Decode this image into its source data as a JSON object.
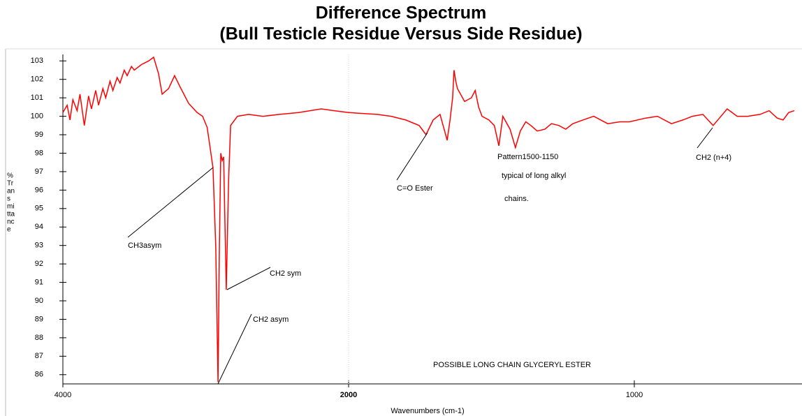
{
  "chart_data": {
    "type": "line",
    "title": [
      "Difference Spectrum",
      "(Bull Testicle Residue Versus Side Residue)"
    ],
    "xlabel": "Wavenumbers (cm-1)",
    "ylabel": [
      "%",
      "Tr",
      "an",
      "s",
      "mi",
      "tta",
      "nc",
      "e"
    ],
    "xlim": [
      4000,
      440
    ],
    "x_break": 2000,
    "xticks": [
      4000,
      2000,
      1000
    ],
    "ylim": [
      85.5,
      103.35
    ],
    "yticks": [
      86,
      87,
      88,
      89,
      90,
      91,
      92,
      93,
      94,
      95,
      96,
      97,
      98,
      99,
      100,
      101,
      102,
      103
    ],
    "series": [
      {
        "color": "#ff0000",
        "x": [
          4000,
          3970,
          3950,
          3930,
          3900,
          3880,
          3850,
          3820,
          3800,
          3770,
          3750,
          3720,
          3700,
          3670,
          3650,
          3620,
          3600,
          3570,
          3550,
          3520,
          3500,
          3450,
          3400,
          3365,
          3330,
          3305,
          3260,
          3218,
          3180,
          3120,
          3060,
          3022,
          2990,
          2973,
          2949,
          2930,
          2914,
          2905,
          2895,
          2885,
          2875,
          2865,
          2856,
          2840,
          2826,
          2778,
          2700,
          2600,
          2484,
          2350,
          2191,
          2100,
          2000,
          1900,
          1851,
          1800,
          1753,
          1729,
          1704,
          1680,
          1655,
          1645,
          1636,
          1631,
          1625,
          1619,
          1594,
          1570,
          1557,
          1545,
          1533,
          1509,
          1490,
          1474,
          1460,
          1435,
          1416,
          1399,
          1380,
          1362,
          1340,
          1313,
          1290,
          1264,
          1240,
          1215,
          1180,
          1142,
          1093,
          1050,
          1017,
          960,
          919,
          870,
          830,
          797,
          760,
          724,
          675,
          640,
          604,
          560,
          528,
          500,
          479,
          460,
          440
        ],
        "values": [
          100.2,
          100.6,
          99.8,
          100.9,
          100.3,
          101.2,
          99.5,
          101.1,
          100.4,
          101.4,
          100.6,
          101.5,
          101.0,
          101.9,
          101.4,
          102.1,
          101.8,
          102.5,
          102.2,
          102.7,
          102.5,
          102.8,
          103.0,
          103.2,
          102.3,
          101.2,
          101.5,
          102.2,
          101.6,
          100.7,
          100.2,
          100.0,
          99.4,
          98.5,
          97.2,
          93.0,
          85.6,
          92.5,
          98.0,
          97.6,
          97.8,
          94.0,
          90.6,
          96.5,
          99.5,
          100.0,
          100.1,
          100.0,
          100.1,
          100.2,
          100.4,
          100.3,
          100.2,
          100.1,
          100.0,
          99.8,
          99.5,
          99.0,
          99.8,
          100.1,
          98.7,
          99.8,
          101.0,
          102.5,
          101.9,
          101.5,
          100.8,
          101.0,
          101.4,
          100.5,
          100.0,
          99.8,
          99.5,
          98.4,
          100.0,
          99.3,
          98.3,
          99.2,
          99.7,
          99.5,
          99.2,
          99.3,
          99.6,
          99.5,
          99.3,
          99.6,
          99.8,
          100.0,
          99.6,
          99.7,
          99.7,
          99.9,
          100.0,
          99.6,
          99.8,
          100.0,
          100.1,
          99.5,
          100.4,
          100.0,
          100.0,
          100.1,
          100.3,
          99.9,
          99.8,
          100.2,
          100.3
        ]
      }
    ],
    "annotations": [
      "CH3asym",
      "CH2 sym",
      "CH2 asym",
      "C=O Ester",
      "Pattern1500-1150",
      "typical of long alkyl",
      "chains.",
      "CH2 (n+4)",
      "POSSIBLE LONG CHAIN GLYCERYL ESTER"
    ]
  }
}
